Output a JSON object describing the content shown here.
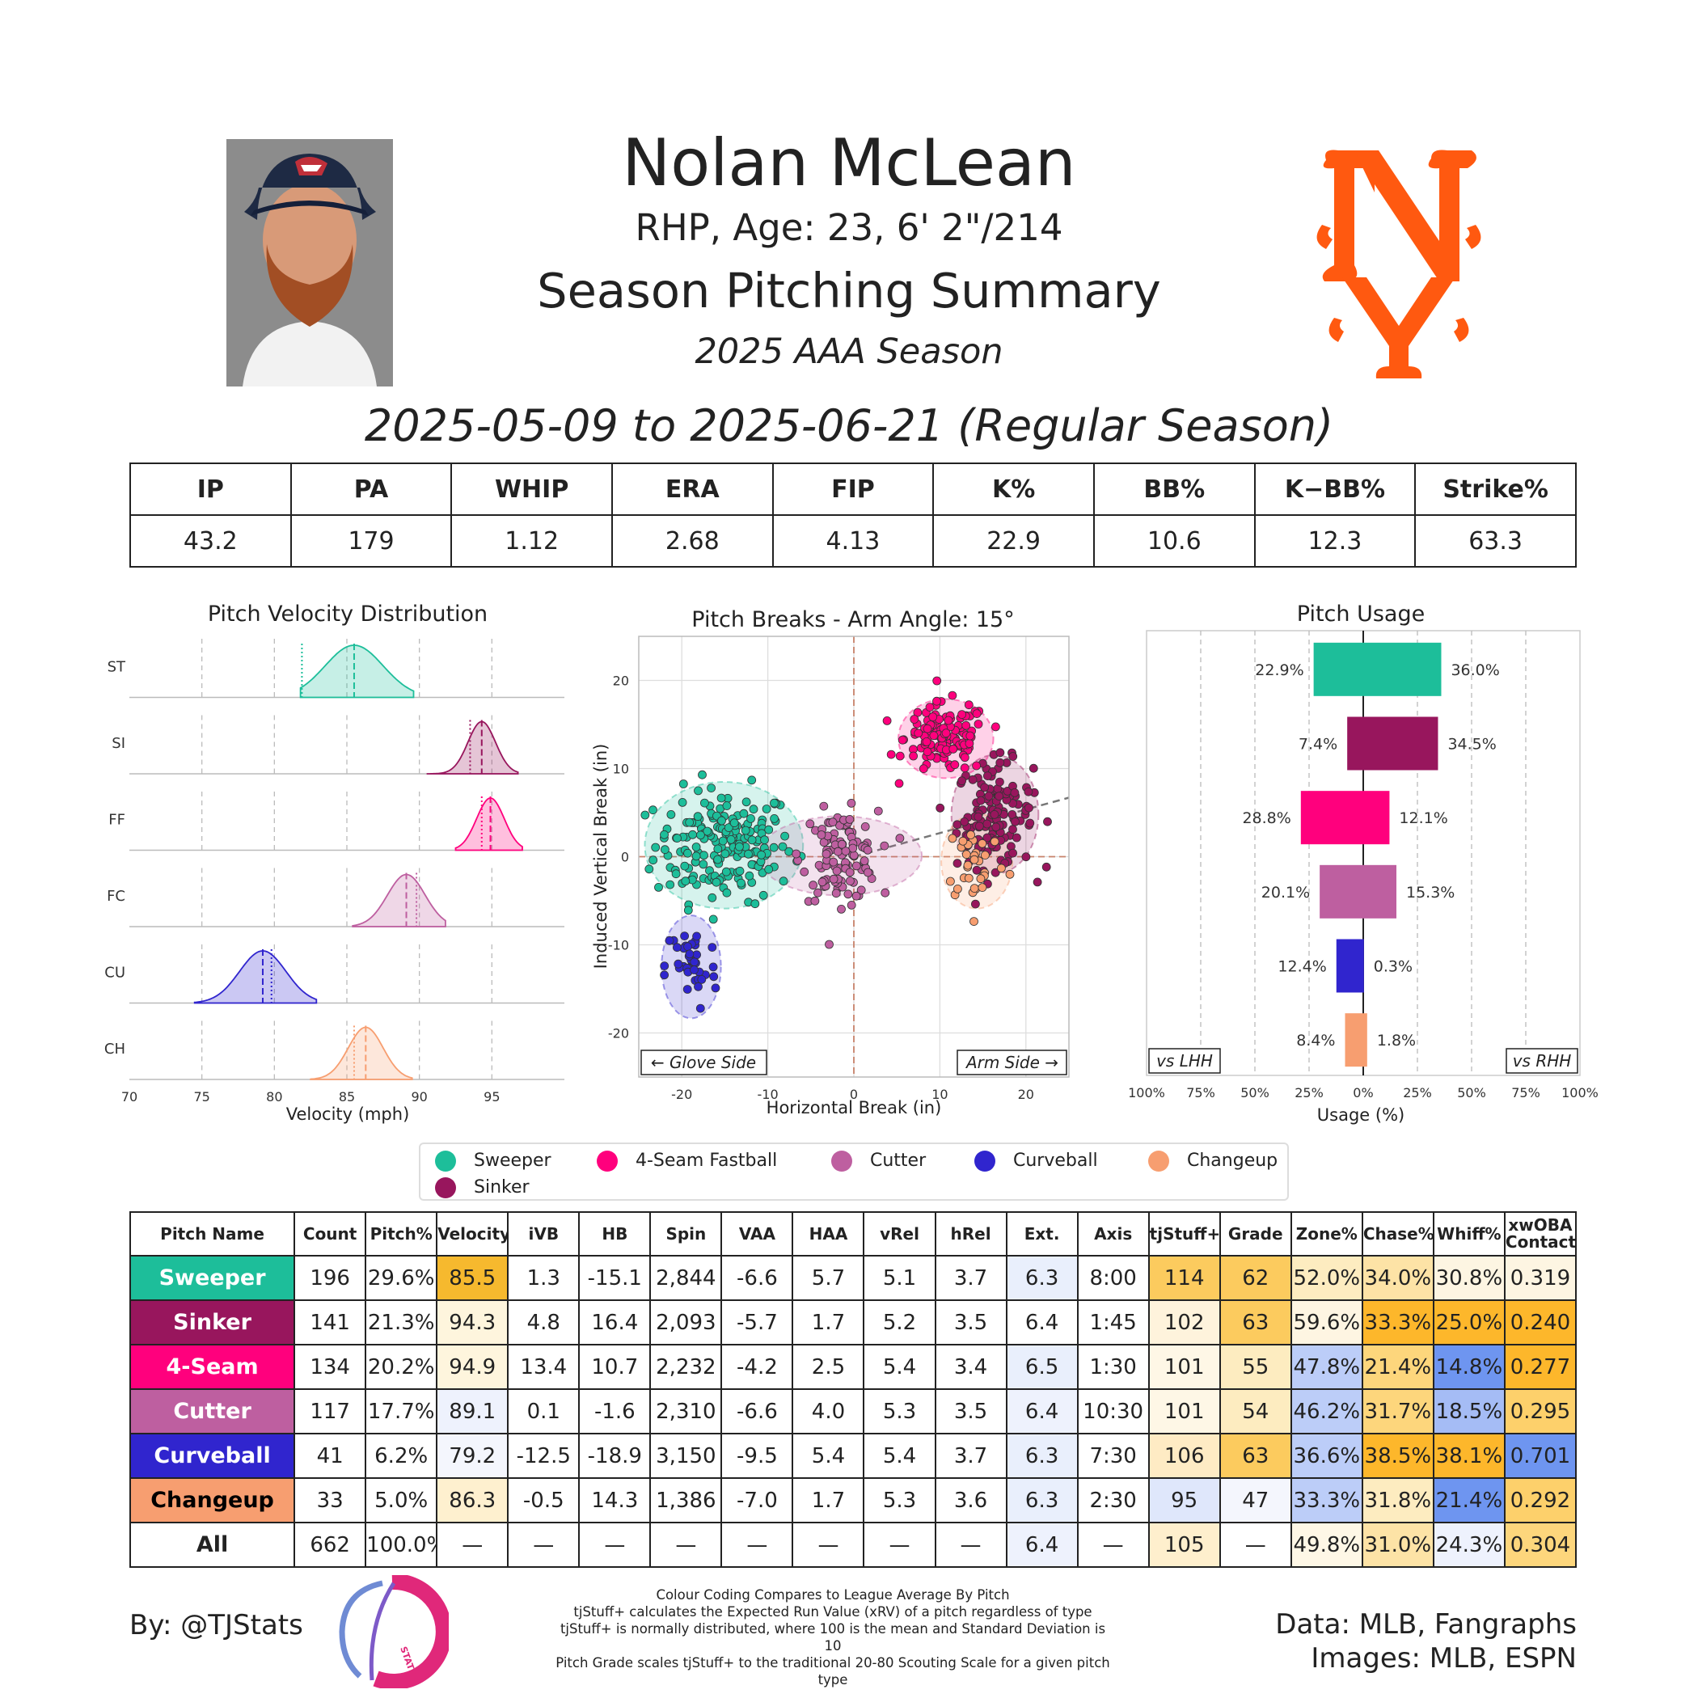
{
  "header": {
    "name": "Nolan McLean",
    "bio": "RHP, Age: 23, 6' 2\"/214",
    "title": "Season Pitching Summary",
    "season": "2025 AAA Season",
    "dates": "2025-05-09 to 2025-06-21 (Regular Season)",
    "team_color": "#FF5910"
  },
  "summary": {
    "headers": [
      "IP",
      "PA",
      "WHIP",
      "ERA",
      "FIP",
      "K%",
      "BB%",
      "K−BB%",
      "Strike%"
    ],
    "values": [
      "43.2",
      "179",
      "1.12",
      "2.68",
      "4.13",
      "22.9",
      "10.6",
      "12.3",
      "63.3"
    ]
  },
  "pitch_colors": {
    "ST": "#1DBE9A",
    "SI": "#98165D",
    "FF": "#FF007D",
    "FC": "#BE5FA0",
    "CU": "#3025CE",
    "CH": "#F79E70"
  },
  "chart_data": [
    {
      "type": "area",
      "title": "Pitch Velocity Distribution",
      "xlabel": "Velocity (mph)",
      "xlim": [
        70,
        100
      ],
      "xticks": [
        70,
        75,
        80,
        85,
        90,
        95
      ],
      "series": [
        {
          "name": "ST",
          "mean": 85.5,
          "sd": 2.0,
          "min": 81.8,
          "max": 89.6,
          "league_avg": 81.9
        },
        {
          "name": "SI",
          "mean": 94.3,
          "sd": 0.95,
          "min": 90.5,
          "max": 96.8,
          "league_avg": 93.5
        },
        {
          "name": "FF",
          "mean": 94.9,
          "sd": 0.95,
          "min": 92.5,
          "max": 97.1,
          "league_avg": 94.3
        },
        {
          "name": "FC",
          "mean": 89.1,
          "sd": 1.3,
          "min": 85.4,
          "max": 91.8,
          "league_avg": 89.8
        },
        {
          "name": "CU",
          "mean": 79.2,
          "sd": 1.6,
          "min": 74.5,
          "max": 82.9,
          "league_avg": 79.8
        },
        {
          "name": "CH",
          "mean": 86.3,
          "sd": 1.2,
          "min": 82.5,
          "max": 89.5,
          "league_avg": 85.5
        }
      ]
    },
    {
      "type": "scatter",
      "title": "Pitch Breaks - Arm Angle: 15°",
      "xlabel": "Horizontal Break (in)",
      "ylabel": "Induced Vertical Break (in)",
      "xlim": [
        -25,
        25
      ],
      "ylim": [
        -25,
        25
      ],
      "xticks": [
        -20,
        -10,
        0,
        10,
        20
      ],
      "yticks": [
        -20,
        -10,
        0,
        10,
        20
      ],
      "arm_angle": 15,
      "annotation_left": "← Glove Side",
      "annotation_right": "Arm Side →",
      "series": [
        {
          "name": "Sweeper",
          "code": "ST",
          "hb": -15.1,
          "ivb": 1.3,
          "count": 196,
          "sx": 4.0,
          "sy": 3.2
        },
        {
          "name": "Sinker",
          "code": "SI",
          "hb": 16.4,
          "ivb": 4.8,
          "count": 141,
          "sx": 2.2,
          "sy": 3.0
        },
        {
          "name": "4-Seam Fastball",
          "code": "FF",
          "hb": 10.7,
          "ivb": 13.4,
          "count": 134,
          "sx": 2.4,
          "sy": 2.0
        },
        {
          "name": "Cutter",
          "code": "FC",
          "hb": -1.6,
          "ivb": 0.1,
          "count": 117,
          "sx": 2.2,
          "sy": 2.5
        },
        {
          "name": "Curveball",
          "code": "CU",
          "hb": -18.9,
          "ivb": -12.5,
          "count": 41,
          "sx": 1.5,
          "sy": 2.6
        },
        {
          "name": "Changeup",
          "code": "CH",
          "hb": 14.3,
          "ivb": -0.5,
          "count": 33,
          "sx": 1.8,
          "sy": 2.4
        }
      ]
    },
    {
      "type": "bar",
      "title": "Pitch Usage",
      "xlabel": "Usage (%)",
      "xlim": [
        -100,
        100
      ],
      "xticks": [
        "100%",
        "75%",
        "50%",
        "25%",
        "0%",
        "25%",
        "50%",
        "75%",
        "100%"
      ],
      "left_label": "vs LHH",
      "right_label": "vs RHH",
      "categories": [
        "ST",
        "SI",
        "FF",
        "FC",
        "CU",
        "CH"
      ],
      "vs_lhh": [
        22.9,
        7.4,
        28.8,
        20.1,
        12.4,
        8.4
      ],
      "vs_rhh": [
        36.0,
        34.5,
        12.1,
        15.3,
        0.3,
        1.8
      ]
    }
  ],
  "legend": [
    {
      "label": "Sweeper",
      "code": "ST"
    },
    {
      "label": "4-Seam Fastball",
      "code": "FF"
    },
    {
      "label": "Cutter",
      "code": "FC"
    },
    {
      "label": "Curveball",
      "code": "CU"
    },
    {
      "label": "Changeup",
      "code": "CH"
    },
    {
      "label": "Sinker",
      "code": "SI"
    }
  ],
  "pitch_table": {
    "headers": [
      "Pitch Name",
      "Count",
      "Pitch%",
      "Velocity",
      "iVB",
      "HB",
      "Spin",
      "VAA",
      "HAA",
      "vRel",
      "hRel",
      "Ext.",
      "Axis",
      "tjStuff+",
      "Grade",
      "Zone%",
      "Chase%",
      "Whiff%",
      "xwOBA Contact"
    ],
    "rows": [
      {
        "code": "ST",
        "name": "Sweeper",
        "cells": [
          "196",
          "29.6%",
          "85.5",
          "1.3",
          "-15.1",
          "2,844",
          "-6.6",
          "5.7",
          "5.1",
          "3.7",
          "6.3",
          "8:00",
          "114",
          "62",
          "52.0%",
          "34.0%",
          "30.8%",
          "0.319"
        ],
        "colors": [
          "#fff",
          "#fff",
          "#F6B92E",
          "#fff",
          "#fff",
          "#fff",
          "#fff",
          "#fff",
          "#fff",
          "#fff",
          "#E9EFFC",
          "#fff",
          "#FCCB5E",
          "#FCCB5E",
          "#FDECC0",
          "#FDE3A6",
          "#FDF5E2",
          "#FDF5E2"
        ]
      },
      {
        "code": "SI",
        "name": "Sinker",
        "cells": [
          "141",
          "21.3%",
          "94.3",
          "4.8",
          "16.4",
          "2,093",
          "-5.7",
          "1.7",
          "5.2",
          "3.5",
          "6.4",
          "1:45",
          "102",
          "63",
          "59.6%",
          "33.3%",
          "25.0%",
          "0.240"
        ],
        "colors": [
          "#fff",
          "#fff",
          "#FEF5DD",
          "#fff",
          "#fff",
          "#fff",
          "#fff",
          "#fff",
          "#fff",
          "#fff",
          "#fff",
          "#fff",
          "#FEF3DC",
          "#FCCB5E",
          "#FEF5E2",
          "#FDB72B",
          "#FDB72B",
          "#FDB72B"
        ]
      },
      {
        "code": "FF",
        "name": "4-Seam",
        "cells": [
          "134",
          "20.2%",
          "94.9",
          "13.4",
          "10.7",
          "2,232",
          "-4.2",
          "2.5",
          "5.4",
          "3.4",
          "6.5",
          "1:30",
          "101",
          "55",
          "47.8%",
          "21.4%",
          "14.8%",
          "0.277"
        ],
        "colors": [
          "#fff",
          "#fff",
          "#FEF5DD",
          "#fff",
          "#fff",
          "#fff",
          "#fff",
          "#fff",
          "#fff",
          "#fff",
          "#E9EFFC",
          "#fff",
          "#FEF7E6",
          "#FDECC0",
          "#BCCDF8",
          "#FDD67C",
          "#6E95F0",
          "#FDB72B"
        ]
      },
      {
        "code": "FC",
        "name": "Cutter",
        "cells": [
          "117",
          "17.7%",
          "89.1",
          "0.1",
          "-1.6",
          "2,310",
          "-6.6",
          "4.0",
          "5.3",
          "3.5",
          "6.4",
          "10:30",
          "101",
          "54",
          "46.2%",
          "31.7%",
          "18.5%",
          "0.295"
        ],
        "colors": [
          "#fff",
          "#fff",
          "#EEF2FD",
          "#fff",
          "#fff",
          "#fff",
          "#fff",
          "#fff",
          "#fff",
          "#fff",
          "#EEF2FD",
          "#fff",
          "#FEF7E6",
          "#FDECC0",
          "#BCCDF8",
          "#FDD67C",
          "#A5BCF5",
          "#FDD06B"
        ]
      },
      {
        "code": "CU",
        "name": "Curveball",
        "cells": [
          "41",
          "6.2%",
          "79.2",
          "-12.5",
          "-18.9",
          "3,150",
          "-9.5",
          "5.4",
          "5.4",
          "3.7",
          "6.3",
          "7:30",
          "106",
          "63",
          "36.6%",
          "38.5%",
          "38.1%",
          "0.701"
        ],
        "colors": [
          "#fff",
          "#fff",
          "#F4F6FD",
          "#fff",
          "#fff",
          "#fff",
          "#fff",
          "#fff",
          "#fff",
          "#fff",
          "#E9EFFC",
          "#fff",
          "#FEEBC4",
          "#FCCB5E",
          "#BCCDF8",
          "#FDB72B",
          "#FDB72B",
          "#6E95F0"
        ]
      },
      {
        "code": "CH",
        "name": "Changeup",
        "cells": [
          "33",
          "5.0%",
          "86.3",
          "-0.5",
          "14.3",
          "1,386",
          "-7.0",
          "1.7",
          "5.3",
          "3.6",
          "6.3",
          "2:30",
          "95",
          "47",
          "33.3%",
          "31.8%",
          "21.4%",
          "0.292"
        ],
        "colors": [
          "#fff",
          "#fff",
          "#FEF0CF",
          "#fff",
          "#fff",
          "#fff",
          "#fff",
          "#fff",
          "#fff",
          "#fff",
          "#E9EFFC",
          "#fff",
          "#DFE7FB",
          "#F4F6FD",
          "#BCCDF8",
          "#FDECC0",
          "#6E95F0",
          "#FDD06B"
        ]
      },
      {
        "code": "ALL",
        "name": "All",
        "cells": [
          "662",
          "100.0%",
          "—",
          "—",
          "—",
          "—",
          "—",
          "—",
          "—",
          "—",
          "6.4",
          "—",
          "105",
          "—",
          "49.8%",
          "31.0%",
          "24.3%",
          "0.304"
        ],
        "colors": [
          "#fff",
          "#fff",
          "#fff",
          "#fff",
          "#fff",
          "#fff",
          "#fff",
          "#fff",
          "#fff",
          "#fff",
          "#EEF2FD",
          "#fff",
          "#FEEFCD",
          "#fff",
          "#FEF7E6",
          "#FDE3A6",
          "#EEF2FD",
          "#FDD67C"
        ]
      }
    ]
  },
  "footer": {
    "by": "By: @TJStats",
    "notes": [
      "Colour Coding Compares to League Average By Pitch",
      "tjStuff+ calculates the Expected Run Value (xRV) of a pitch regardless of type",
      "tjStuff+ is normally distributed, where 100 is the mean and Standard Deviation is 10",
      "Pitch Grade scales tjStuff+ to the traditional 20-80 Scouting Scale for a given pitch type"
    ],
    "data_source": "Data: MLB, Fangraphs",
    "images_source": "Images: MLB, ESPN",
    "logo_text": "STATS"
  }
}
